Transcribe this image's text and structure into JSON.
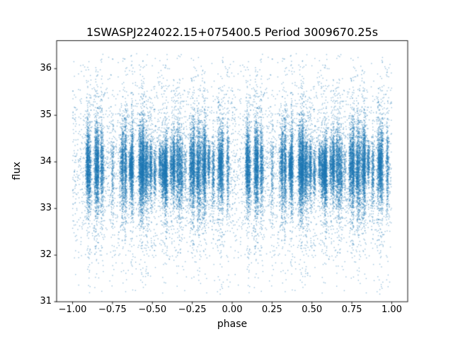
{
  "chart_data": {
    "type": "scatter",
    "title": "1SWASPJ224022.15+075400.5 Period 3009670.25s",
    "xlabel": "phase",
    "ylabel": "flux",
    "xlim": [
      -1.1,
      1.1
    ],
    "ylim": [
      31.0,
      36.6
    ],
    "grid": false,
    "legend": null,
    "x_ticks": [
      {
        "v": -1.0,
        "label": "−1.00"
      },
      {
        "v": -0.75,
        "label": "−0.75"
      },
      {
        "v": -0.5,
        "label": "−0.50"
      },
      {
        "v": -0.25,
        "label": "−0.25"
      },
      {
        "v": 0.0,
        "label": "0.00"
      },
      {
        "v": 0.25,
        "label": "0.25"
      },
      {
        "v": 0.5,
        "label": "0.50"
      },
      {
        "v": 0.75,
        "label": "0.75"
      },
      {
        "v": 1.0,
        "label": "1.00"
      }
    ],
    "y_ticks": [
      {
        "v": 31,
        "label": "31"
      },
      {
        "v": 32,
        "label": "32"
      },
      {
        "v": 33,
        "label": "33"
      },
      {
        "v": 34,
        "label": "34"
      },
      {
        "v": 35,
        "label": "35"
      },
      {
        "v": 36,
        "label": "36"
      }
    ],
    "marker_color": "#1f77b4",
    "marker_alpha": 0.45,
    "marker_size_px": 1.4,
    "series": [
      {
        "name": "flux",
        "summary": {
          "description": "Phase-folded light curve; dense vertical striations of points around flux ~33.9, duplicated over [-1,0) and [0,1)",
          "phase_min": -1.0,
          "phase_max": 1.0,
          "flux_mean": 33.87,
          "flux_core_sigma": 0.32,
          "flux_min": 31.15,
          "flux_max": 36.32
        },
        "generation": {
          "seed": 1337,
          "stripe_count": 78,
          "points_per_stripe": [
            60,
            420
          ],
          "stripe_sigma": [
            0.18,
            0.55
          ],
          "stripe_mean_jitter": 0.12,
          "stripe_phase_jitter": 0.0045,
          "tail_fraction": 0.1,
          "tail_sigma_mult": 3.0,
          "background_points": 2600,
          "background_sigma": 1.05,
          "duplicate_offset": -1.0
        }
      }
    ]
  }
}
